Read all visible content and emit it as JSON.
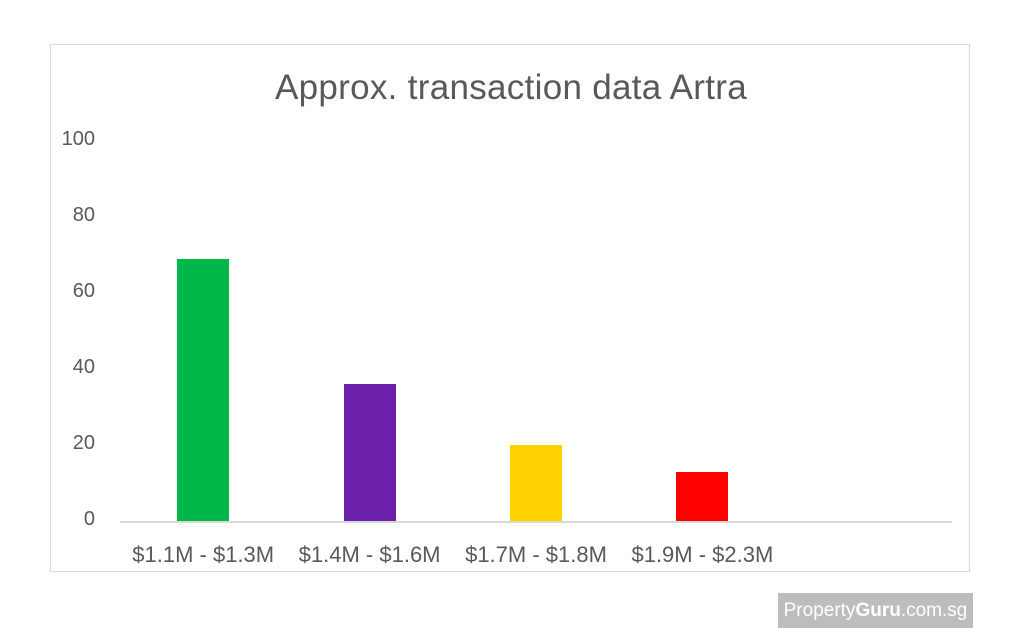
{
  "chart_data": {
    "type": "bar",
    "title": "Approx. transaction data Artra",
    "categories": [
      "$1.1M - $1.3M",
      "$1.4M - $1.6M",
      "$1.7M - $1.8M",
      "$1.9M - $2.3M"
    ],
    "values": [
      69,
      36,
      20,
      13
    ],
    "colors": [
      "#00b84a",
      "#6a20ab",
      "#ffd200",
      "#ff0000"
    ],
    "xlabel": "",
    "ylabel": "",
    "ylim": [
      0,
      100
    ],
    "yticks": [
      "0",
      "20",
      "40",
      "60",
      "80",
      "100"
    ],
    "grid": false,
    "legend": null
  },
  "watermark": {
    "part1": "Property",
    "part2": "Guru",
    "part3": ".com.sg"
  }
}
